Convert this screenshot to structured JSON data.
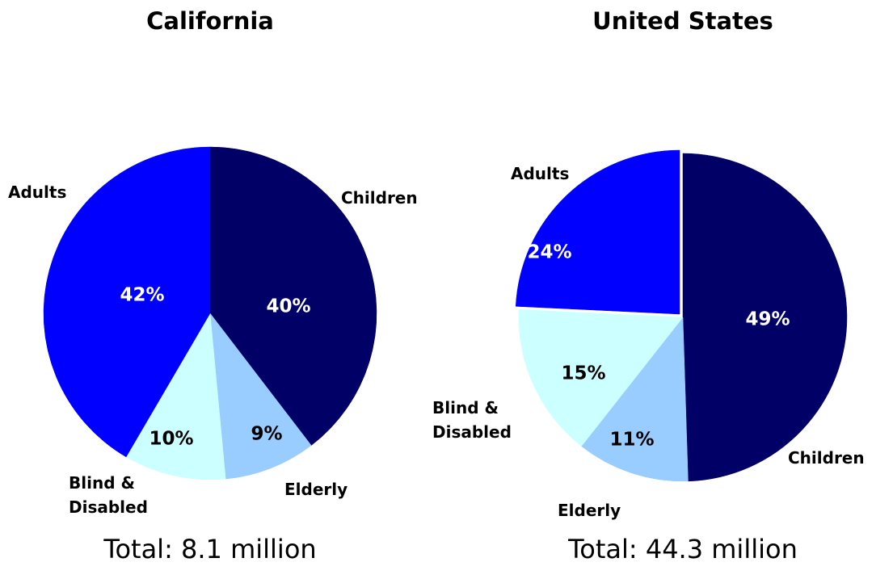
{
  "chart_data": [
    {
      "type": "pie",
      "title": "California",
      "subtitle": "Total: 8.1 million",
      "categories": [
        "Children",
        "Elderly",
        "Blind & Disabled",
        "Adults"
      ],
      "values": [
        40,
        9,
        10,
        42
      ],
      "value_labels": [
        "40%",
        "9%",
        "10%",
        "42%"
      ],
      "colors": [
        "#000066",
        "#99ccff",
        "#ccffff",
        "#0000ff"
      ]
    },
    {
      "type": "pie",
      "title": "United States",
      "subtitle": "Total: 44.3 million",
      "categories": [
        "Children",
        "Elderly",
        "Blind & Disabled",
        "Adults"
      ],
      "values": [
        49,
        11,
        15,
        24
      ],
      "value_labels": [
        "49%",
        "11%",
        "15%",
        "24%"
      ],
      "colors": [
        "#000066",
        "#99ccff",
        "#ccffff",
        "#0000ff"
      ]
    }
  ]
}
